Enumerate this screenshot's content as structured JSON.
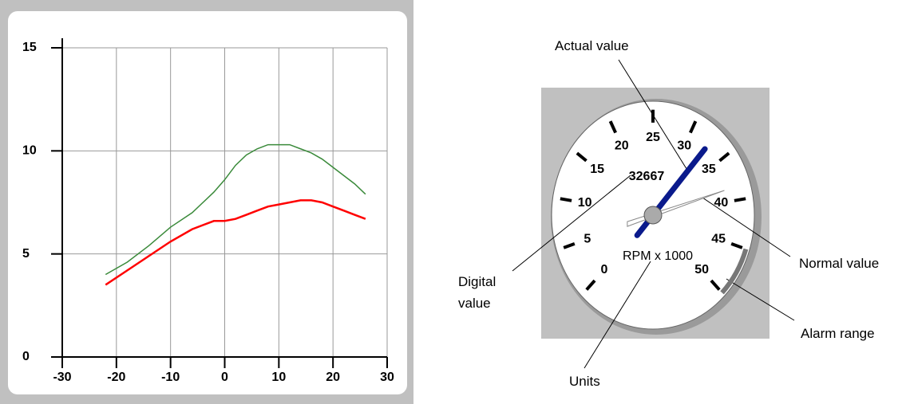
{
  "chart_data": [
    {
      "type": "line",
      "x": [
        -22,
        -18,
        -14,
        -10,
        -6,
        -2,
        0,
        2,
        4,
        6,
        8,
        10,
        12,
        14,
        16,
        18,
        20,
        22,
        24,
        26
      ],
      "series": [
        {
          "color": "#3a8a3a",
          "values": [
            4.0,
            4.6,
            5.4,
            6.3,
            7.0,
            8.0,
            8.6,
            9.3,
            9.8,
            10.1,
            10.3,
            10.3,
            10.3,
            10.1,
            9.9,
            9.6,
            9.2,
            8.8,
            8.4,
            7.9
          ]
        },
        {
          "color": "#ff0000",
          "values": [
            3.5,
            4.2,
            4.9,
            5.6,
            6.2,
            6.6,
            6.6,
            6.7,
            6.9,
            7.1,
            7.3,
            7.4,
            7.5,
            7.6,
            7.6,
            7.5,
            7.3,
            7.1,
            6.9,
            6.7
          ]
        }
      ],
      "xlim": [
        -30,
        30
      ],
      "xticks": [
        -30,
        -20,
        -10,
        0,
        10,
        20,
        30
      ],
      "ylim": [
        0,
        15
      ],
      "yticks": [
        0,
        5,
        10,
        15
      ],
      "grid": true
    },
    {
      "type": "gauge",
      "units": "RPM x 1000",
      "lim": [
        0,
        50000
      ],
      "ticks": [
        {
          "value": 0,
          "label": "0"
        },
        {
          "value": 5000,
          "label": "5"
        },
        {
          "value": 10000,
          "label": "10"
        },
        {
          "value": 15000,
          "label": "15"
        },
        {
          "value": 20000,
          "label": "20"
        },
        {
          "value": 25000,
          "label": "25"
        },
        {
          "value": 30000,
          "label": "30"
        },
        {
          "value": 35000,
          "label": "35"
        },
        {
          "value": 40000,
          "label": "40"
        },
        {
          "value": 45000,
          "label": "45"
        },
        {
          "value": 50000,
          "label": "50"
        }
      ],
      "value": 32667,
      "needle_color": "#0a1a8c",
      "normal_value": 38500,
      "alarm_range": [
        45000,
        50000
      ],
      "annotations": {
        "actual": "Actual value",
        "digital": "Digital value",
        "units": "Units",
        "normal": "Normal value",
        "alarm": "Alarm range"
      }
    }
  ]
}
